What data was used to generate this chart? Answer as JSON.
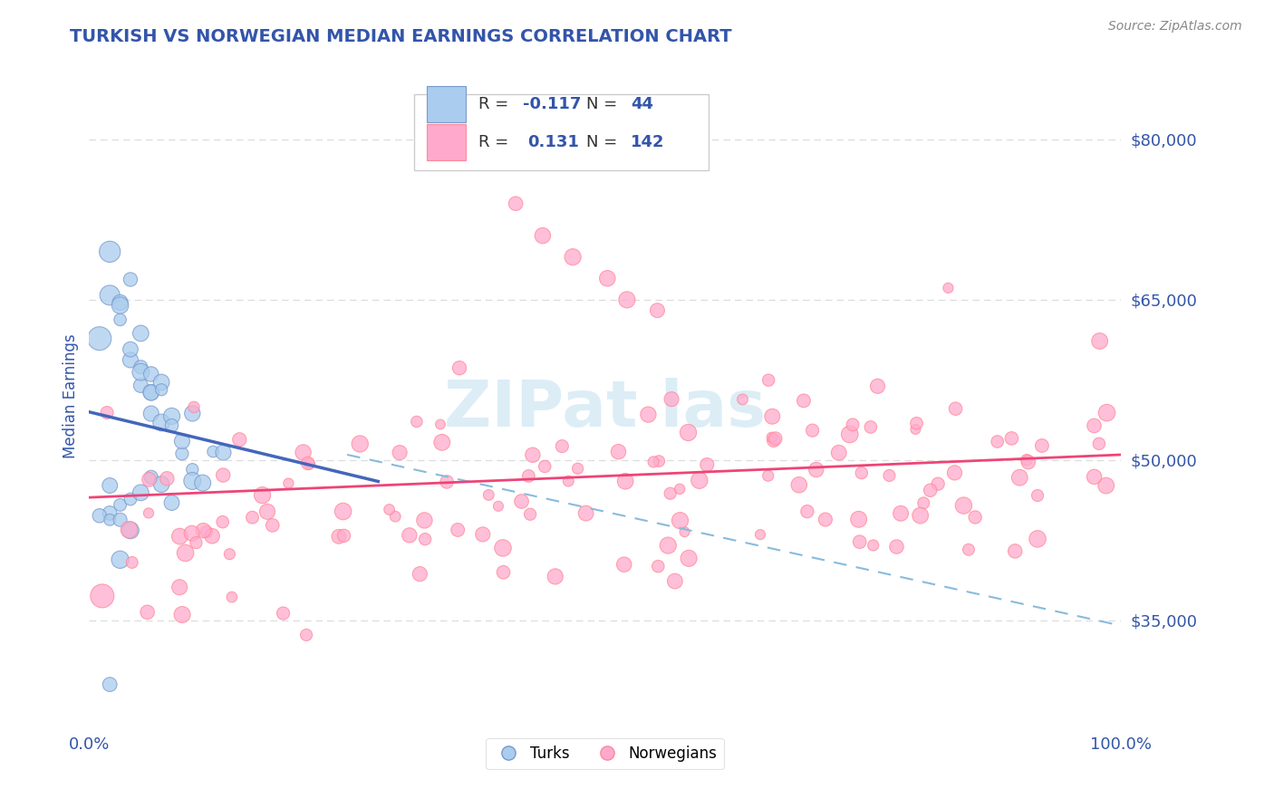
{
  "title": "TURKISH VS NORWEGIAN MEDIAN EARNINGS CORRELATION CHART",
  "source": "Source: ZipAtlas.com",
  "ylabel": "Median Earnings",
  "yticks": [
    35000,
    50000,
    65000,
    80000
  ],
  "ytick_labels": [
    "$35,000",
    "$50,000",
    "$65,000",
    "$80,000"
  ],
  "xmin": 0.0,
  "xmax": 1.0,
  "ymin": 25000,
  "ymax": 87000,
  "color_turks_fill": "#AACCEE",
  "color_turks_edge": "#7799CC",
  "color_norwegians_fill": "#FFAACC",
  "color_norwegians_edge": "#FF8899",
  "color_blue_line": "#4466BB",
  "color_pink_line": "#EE4477",
  "color_dashed": "#88BBDD",
  "color_title": "#3355AA",
  "color_source": "#888888",
  "color_axis_labels": "#3355AA",
  "color_ytick_labels": "#3355AA",
  "color_grid": "#DDDDDD",
  "background_color": "#FFFFFF",
  "watermark_text": "ZIPat las",
  "watermark_color": "#BBDDEE",
  "legend_r1_label": "R = ",
  "legend_r1_val": "-0.117",
  "legend_n1_label": "N = ",
  "legend_n1_val": " 44",
  "legend_r2_label": "R =  ",
  "legend_r2_val": "0.131",
  "legend_n2_label": "N = ",
  "legend_n2_val": "142",
  "blue_line_x": [
    0.0,
    0.28
  ],
  "blue_line_y": [
    54500,
    48000
  ],
  "pink_line_x": [
    0.0,
    1.0
  ],
  "pink_line_y": [
    46500,
    50500
  ],
  "dashed_line_x": [
    0.25,
    1.0
  ],
  "dashed_line_y": [
    50500,
    34500
  ]
}
